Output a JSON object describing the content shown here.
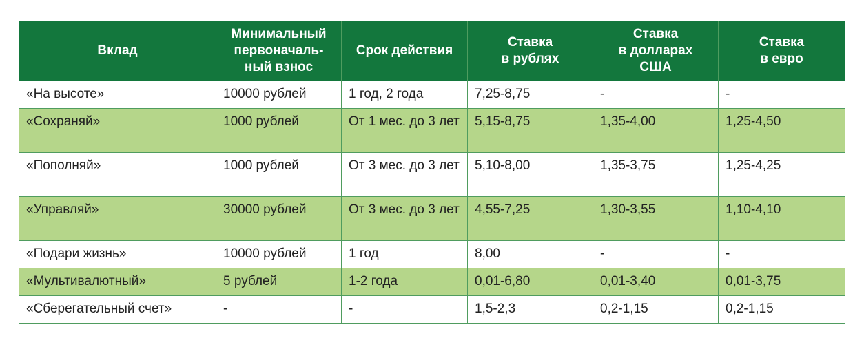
{
  "colors": {
    "header": "#13773d",
    "stripe": "#b5d68a",
    "border": "#4f9c5f"
  },
  "headers": [
    "Вклад",
    "Минимальный первоначаль-ный взнос",
    "Срок действия",
    "Ставка в рублях",
    "Ставка в долларах США",
    "Ставка в евро"
  ],
  "rows": [
    [
      "«На высоте»",
      "10000 рублей",
      "1 год, 2 года",
      "7,25-8,75",
      "-",
      "-"
    ],
    [
      "«Сохраняй»",
      "1000 рублей",
      "От 1 мес. до 3 лет",
      "5,15-8,75",
      "1,35-4,00",
      "1,25-4,50"
    ],
    [
      "«Пополняй»",
      "1000 рублей",
      "От 3 мес. до 3 лет",
      "5,10-8,00",
      "1,35-3,75",
      "1,25-4,25"
    ],
    [
      "«Управляй»",
      "30000 рублей",
      "От 3 мес. до 3 лет",
      "4,55-7,25",
      "1,30-3,55",
      "1,10-4,10"
    ],
    [
      "«Подари жизнь»",
      "10000 рублей",
      "1 год",
      "8,00",
      "-",
      "-"
    ],
    [
      "«Мультивалютный»",
      "5 рублей",
      "1-2 года",
      "0,01-6,80",
      "0,01-3,40",
      "0,01-3,75"
    ],
    [
      "«Сберегательный счет»",
      "-",
      "-",
      "1,5-2,3",
      "0,2-1,15",
      "0,2-1,15"
    ]
  ]
}
